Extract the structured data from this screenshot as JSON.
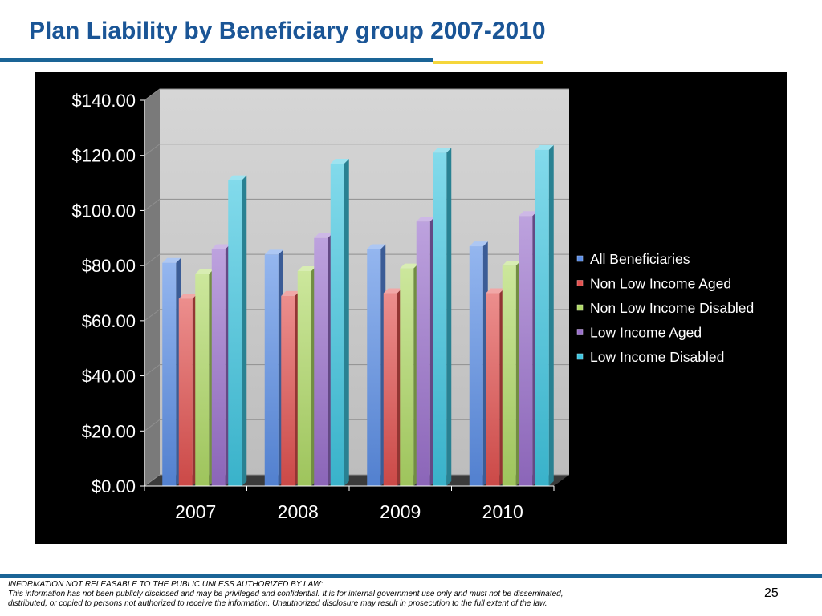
{
  "slide": {
    "title": "Plan Liability by Beneficiary group 2007-2010",
    "page_number": "25",
    "footer": {
      "line1": "INFORMATION NOT RELEASABLE TO THE PUBLIC UNLESS AUTHORIZED BY LAW:",
      "line2": "This information has not been publicly disclosed and may be privileged and confidential.  It is for internal government use only and must not be disseminated,",
      "line3": "distributed, or copied to persons not authorized to receive the information.  Unauthorized disclosure may result in prosecution to the full extent of the law."
    }
  },
  "colors": {
    "title": "#1a5596",
    "rule_blue": "#1a6496",
    "rule_yellow": "#f5d63b",
    "panel_background": "#000000",
    "plot_background": "#c8c8c8"
  },
  "chart_data": {
    "type": "bar",
    "style": "3d-clustered-column",
    "title": "",
    "xlabel": "",
    "ylabel": "",
    "categories": [
      "2007",
      "2008",
      "2009",
      "2010"
    ],
    "ylim": [
      0,
      140
    ],
    "yticks": [
      0,
      20,
      40,
      60,
      80,
      100,
      120,
      140
    ],
    "ytick_labels": [
      "$0.00",
      "$20.00",
      "$40.00",
      "$60.00",
      "$80.00",
      "$100.00",
      "$120.00",
      "$140.00"
    ],
    "grid": true,
    "legend_position": "right",
    "series": [
      {
        "name": "All Beneficiaries",
        "values": [
          81,
          84,
          86,
          87
        ],
        "color": "#5b8ee6"
      },
      {
        "name": "Non Low Income Aged",
        "values": [
          68,
          69,
          70,
          70
        ],
        "color": "#e2514f"
      },
      {
        "name": "Non Low Income Disabled",
        "values": [
          77,
          78,
          79,
          80
        ],
        "color": "#b0da66"
      },
      {
        "name": "Low Income Aged",
        "values": [
          86,
          90,
          96,
          98
        ],
        "color": "#9a70cc"
      },
      {
        "name": "Low Income Disabled",
        "values": [
          111,
          117,
          121,
          122
        ],
        "color": "#3fc6e0"
      }
    ]
  }
}
